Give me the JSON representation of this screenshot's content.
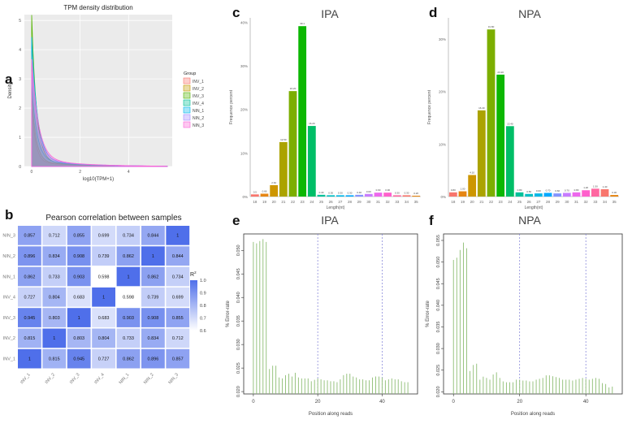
{
  "panels": {
    "a": {
      "letter": "a"
    },
    "b": {
      "letter": "b"
    },
    "c": {
      "letter": "c"
    },
    "d": {
      "letter": "d"
    },
    "e": {
      "letter": "e"
    },
    "f": {
      "letter": "f"
    }
  },
  "colors": {
    "ggplot_bg": "#ebebeb",
    "grid": "#ffffff",
    "heat_low": "#ffffff",
    "heat_high": "#4f6fea",
    "error_line": "#8dbd73",
    "dashed": "#7b7bd6"
  },
  "chart_data": [
    {
      "id": "a",
      "type": "area",
      "title": "TPM density distribution",
      "xlabel": "log10(TPM+1)",
      "ylabel": "Density",
      "x_ticks": [
        "0",
        "2",
        "4"
      ],
      "y_ticks": [
        "0",
        "1",
        "2",
        "3",
        "4",
        "5"
      ],
      "xlim": [
        -0.3,
        5.8
      ],
      "ylim": [
        0,
        5.2
      ],
      "legend_title": "Group",
      "legend_position": "right",
      "series": [
        {
          "name": "INV_1",
          "color": "#f8766d",
          "peak": 2.0
        },
        {
          "name": "INV_2",
          "color": "#c49a00",
          "peak": 2.3
        },
        {
          "name": "INV_3",
          "color": "#53b400",
          "peak": 5.0
        },
        {
          "name": "INV_4",
          "color": "#00c094",
          "peak": 2.6
        },
        {
          "name": "NIN_1",
          "color": "#00b6eb",
          "peak": 4.2
        },
        {
          "name": "NIN_2",
          "color": "#a58aff",
          "peak": 3.0
        },
        {
          "name": "NIN_3",
          "color": "#fb61d7",
          "peak": 3.4
        }
      ]
    },
    {
      "id": "b",
      "type": "heatmap",
      "title": "Pearson correlation between samples",
      "row_labels": [
        "NIN_3",
        "NIN_2",
        "NIN_1",
        "INV_4",
        "INV_3",
        "INV_2",
        "INV_1"
      ],
      "col_labels": [
        "INV_1",
        "INV_2",
        "INV_3",
        "INV_4",
        "NIN_1",
        "NIN_2",
        "NIN_3"
      ],
      "values": [
        [
          "0.857",
          "0.712",
          "0.855",
          "0.699",
          "0.734",
          "0.844",
          "1"
        ],
        [
          "0.896",
          "0.834",
          "0.908",
          "0.739",
          "0.862",
          "1",
          "0.844"
        ],
        [
          "0.862",
          "0.733",
          "0.903",
          "0.598",
          "1",
          "0.862",
          "0.734"
        ],
        [
          "0.727",
          "0.804",
          "0.683",
          "1",
          "0.598",
          "0.739",
          "0.699"
        ],
        [
          "0.945",
          "0.803",
          "1",
          "0.683",
          "0.903",
          "0.908",
          "0.855"
        ],
        [
          "0.815",
          "1",
          "0.803",
          "0.804",
          "0.733",
          "0.834",
          "0.712"
        ],
        [
          "1",
          "0.815",
          "0.945",
          "0.727",
          "0.862",
          "0.896",
          "0.857"
        ]
      ],
      "legend_title": "R",
      "legend_title_sup": "2",
      "legend_ticks": [
        "1.0",
        "0.9",
        "0.8",
        "0.7",
        "0.6"
      ],
      "range": [
        0.6,
        1.0
      ]
    },
    {
      "id": "c",
      "type": "bar",
      "title": "IPA",
      "xlabel": "Length(nt)",
      "ylabel": "Frequence percent",
      "categories": [
        "18",
        "19",
        "20",
        "21",
        "22",
        "23",
        "24",
        "25",
        "26",
        "27",
        "28",
        "29",
        "30",
        "31",
        "32",
        "33",
        "34",
        "35"
      ],
      "values": [
        0.5,
        0.66,
        2.62,
        12.5,
        24.2,
        39.1,
        16.2,
        0.4,
        0.3,
        0.3,
        0.3,
        0.4,
        0.6,
        0.9,
        0.9,
        0.3,
        0.3,
        0.2
      ],
      "value_labels": [
        "0.5",
        "0.66",
        "2.62",
        "12.50",
        "24.20",
        "39.1",
        "16.20",
        "0.40",
        "0.30",
        "0.30",
        "0.30",
        "0.40",
        "0.60",
        "0.90",
        "0.90",
        "0.30",
        "0.30",
        "0.20"
      ],
      "colors": [
        "#f8766d",
        "#e68613",
        "#cd9600",
        "#aba300",
        "#7cae00",
        "#0cb702",
        "#00be67",
        "#00c19a",
        "#00bfc4",
        "#00b8e7",
        "#00a9ff",
        "#8494ff",
        "#c77cff",
        "#ed68ed",
        "#ff61cc",
        "#ff68a1",
        "#f8766d",
        "#e68613"
      ],
      "y_ticks": [
        "0%",
        "10%",
        "20%",
        "30%",
        "40%"
      ],
      "ylim": [
        0,
        41
      ]
    },
    {
      "id": "d",
      "type": "bar",
      "title": "NPA",
      "xlabel": "Length(nt)",
      "ylabel": "Frequence percent",
      "categories": [
        "18",
        "19",
        "20",
        "21",
        "22",
        "23",
        "24",
        "25",
        "26",
        "27",
        "28",
        "29",
        "30",
        "31",
        "32",
        "33",
        "34",
        "35"
      ],
      "values": [
        0.8,
        1.0,
        4.1,
        16.4,
        31.8,
        23.2,
        13.4,
        0.8,
        0.5,
        0.6,
        0.7,
        0.6,
        0.7,
        0.8,
        1.2,
        1.5,
        1.4,
        0.3
      ],
      "value_labels": [
        "0.80",
        "1.00",
        "4.10",
        "16.40",
        "31.80",
        "23.20",
        "13.40",
        "0.80",
        "0.50",
        "0.60",
        "0.70",
        "0.60",
        "0.70",
        "0.80",
        "1.20",
        "1.50",
        "1.40",
        "0.30"
      ],
      "colors": [
        "#f8766d",
        "#e68613",
        "#cd9600",
        "#aba300",
        "#7cae00",
        "#0cb702",
        "#00be67",
        "#00c19a",
        "#00bfc4",
        "#00b8e7",
        "#00a9ff",
        "#8494ff",
        "#c77cff",
        "#ed68ed",
        "#ff61cc",
        "#ff68a1",
        "#f8766d",
        "#e68613"
      ],
      "y_ticks": [
        "0%",
        "10%",
        "20%",
        "30%"
      ],
      "ylim": [
        0,
        34
      ]
    },
    {
      "id": "e",
      "type": "bar",
      "title": "IPA",
      "xlabel": "Position along reads",
      "ylabel": "% Error-rate",
      "y_ticks": [
        "0.020",
        "0.025",
        "0.030",
        "0.035",
        "0.040",
        "0.045",
        "0.050"
      ],
      "x_ticks": [
        "0",
        "20",
        "40"
      ],
      "xlim": [
        -3,
        51
      ],
      "ylim": [
        0.0195,
        0.0535
      ],
      "dashed_lines_x": [
        20,
        40
      ],
      "values": [
        0.0518,
        0.0515,
        0.052,
        0.0524,
        0.0518,
        0.0248,
        0.0255,
        0.0255,
        0.023,
        0.0228,
        0.0235,
        0.0238,
        0.0232,
        0.024,
        0.023,
        0.0228,
        0.0228,
        0.0228,
        0.0222,
        0.0225,
        0.0228,
        0.0226,
        0.0224,
        0.0224,
        0.0222,
        0.0222,
        0.022,
        0.0226,
        0.0235,
        0.0238,
        0.0238,
        0.0232,
        0.023,
        0.0226,
        0.0226,
        0.0224,
        0.0224,
        0.023,
        0.0232,
        0.0232,
        0.023,
        0.0224,
        0.0226,
        0.0228,
        0.0226,
        0.0226,
        0.0222,
        0.022,
        0.022
      ]
    },
    {
      "id": "f",
      "type": "bar",
      "title": "NPA",
      "xlabel": "Position along reads",
      "ylabel": "% Error-rate",
      "y_ticks": [
        "0.020",
        "0.025",
        "0.030",
        "0.035",
        "0.040",
        "0.045",
        "0.050",
        "0.055"
      ],
      "x_ticks": [
        "0",
        "20",
        "40"
      ],
      "xlim": [
        -3,
        51
      ],
      "ylim": [
        0.0195,
        0.0565
      ],
      "dashed_lines_x": [
        20,
        40
      ],
      "values": [
        0.0505,
        0.051,
        0.0528,
        0.0545,
        0.0532,
        0.0248,
        0.0262,
        0.0265,
        0.0228,
        0.0235,
        0.0232,
        0.0228,
        0.024,
        0.0245,
        0.0232,
        0.0224,
        0.0222,
        0.0222,
        0.0222,
        0.0228,
        0.0228,
        0.0226,
        0.0226,
        0.0224,
        0.0224,
        0.0228,
        0.023,
        0.0232,
        0.0238,
        0.0238,
        0.0236,
        0.0234,
        0.0232,
        0.0228,
        0.0228,
        0.0228,
        0.0226,
        0.0228,
        0.023,
        0.0232,
        0.023,
        0.0228,
        0.023,
        0.0232,
        0.023,
        0.022,
        0.0218,
        0.021,
        0.0212
      ]
    }
  ]
}
